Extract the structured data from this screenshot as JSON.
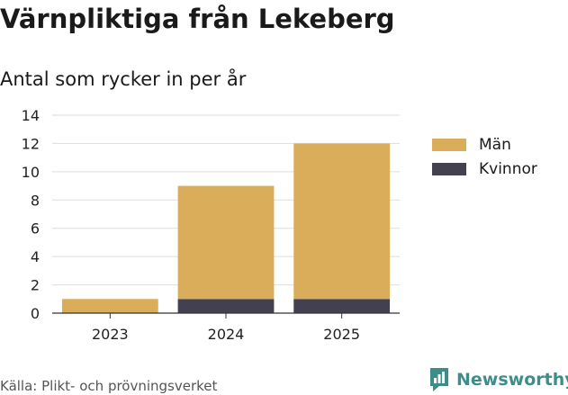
{
  "chart_data": {
    "type": "bar",
    "stacked": true,
    "title": "Värnpliktiga från Lekeberg",
    "subtitle": "Antal som rycker in per år",
    "categories": [
      "2023",
      "2024",
      "2025"
    ],
    "series": [
      {
        "name": "Kvinnor",
        "values": [
          0,
          1,
          1
        ],
        "color": "#434050"
      },
      {
        "name": "Män",
        "values": [
          1,
          8,
          11
        ],
        "color": "#d9ad5a"
      }
    ],
    "legend_order": [
      "Män",
      "Kvinnor"
    ],
    "y_ticks": [
      0,
      2,
      4,
      6,
      8,
      10,
      12,
      14
    ],
    "ylim": [
      0,
      14
    ],
    "grid": true,
    "legend_position": "right"
  },
  "footer": {
    "source": "Källa: Plikt- och prövningsverket",
    "brand": "Newsworthy",
    "brand_color": "#3d8e8a"
  },
  "icons": {
    "brand": "newsworthy-logo-icon"
  }
}
